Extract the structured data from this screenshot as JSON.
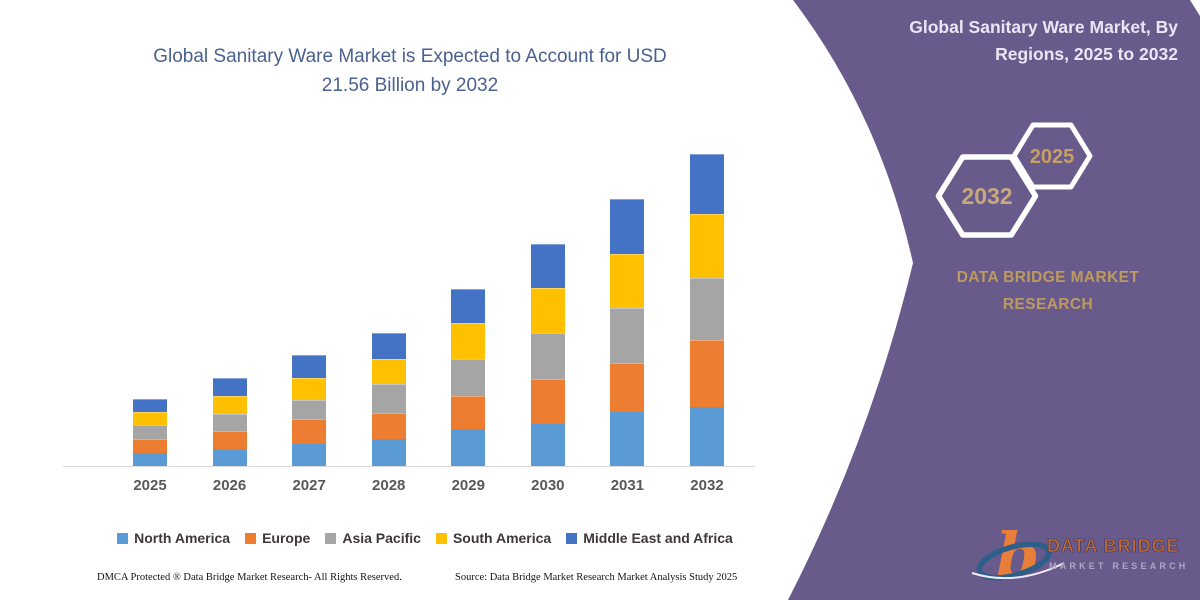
{
  "page": {
    "background": "#ffffff"
  },
  "chart": {
    "title_line1": "Global Sanitary Ware Market is Expected to Account for USD",
    "title_line2": "21.56 Billion by 2032",
    "title_color": "#4a6190"
  },
  "chart_data": {
    "type": "bar",
    "stacked": true,
    "title": "Global Sanitary Ware Market is Expected to Account for USD 21.56 Billion by 2032",
    "unit": "USD Billion",
    "categories": [
      "2025",
      "2026",
      "2027",
      "2028",
      "2029",
      "2030",
      "2031",
      "2032"
    ],
    "series": [
      {
        "name": "North America",
        "color": "#5B9BD5",
        "values": [
          0.9,
          1.15,
          1.5,
          1.84,
          2.53,
          2.88,
          3.7,
          4.1
        ]
      },
      {
        "name": "Europe",
        "color": "#ED7D31",
        "values": [
          0.99,
          1.27,
          1.72,
          1.84,
          2.3,
          3.1,
          3.4,
          4.6
        ]
      },
      {
        "name": "Asia Pacific",
        "color": "#A5A5A5",
        "values": [
          0.92,
          1.15,
          1.31,
          1.95,
          2.53,
          3.22,
          3.8,
          4.3
        ]
      },
      {
        "name": "South America",
        "color": "#FFC000",
        "values": [
          0.92,
          1.26,
          1.57,
          1.72,
          2.53,
          3.1,
          3.7,
          4.4
        ]
      },
      {
        "name": "Middle East and Africa",
        "color": "#4472C4",
        "values": [
          0.89,
          1.25,
          1.56,
          1.83,
          2.32,
          3.02,
          3.82,
          4.16
        ]
      }
    ],
    "totals": [
      4.62,
      6.08,
      7.66,
      9.18,
      12.21,
      15.32,
      18.42,
      21.56
    ],
    "ylim": [
      0,
      21.56
    ],
    "grid": false,
    "legend_position": "bottom",
    "xlabel": "",
    "ylabel": ""
  },
  "footer": {
    "left": "DMCA Protected ® Data Bridge Market Research-  All Rights Reserved.",
    "right": "Source: Data Bridge Market Research  Market Analysis Study 2025"
  },
  "panel": {
    "color": "#695a8c",
    "title_line1": "Global Sanitary Ware Market, By",
    "title_line2": "Regions, 2025 to 2032",
    "hexagon_back_label": "2025",
    "hexagon_front_label": "2032",
    "hexagon_label_color_back": "#c6a061",
    "hexagon_label_color_front": "#c8a97e",
    "brand_line1": "DATA BRIDGE MARKET",
    "brand_line2": "RESEARCH",
    "brand_color": "#bd9a5e",
    "logo": {
      "letter": "b",
      "text_line1": "DATA BRIDGE",
      "text_line2": "MARKET RESEARCH",
      "orange": "#e87e3a",
      "blue": "#2e5f8a"
    }
  }
}
